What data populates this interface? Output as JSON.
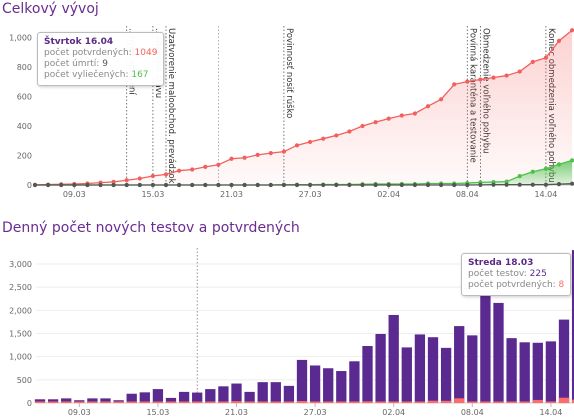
{
  "section1": {
    "title": "Celkový vývoj"
  },
  "section2": {
    "title": "Denný počet nových testov a potvrdených"
  },
  "chart_data": [
    {
      "type": "area",
      "title": "Celkový vývoj",
      "ylim": [
        0,
        1100
      ],
      "y_ticks": [
        "0",
        "200",
        "400",
        "600",
        "800",
        "1,000"
      ],
      "x_ticks": [
        "09.03",
        "15.03",
        "21.03",
        "27.03",
        "02.04",
        "08.04",
        "14.04"
      ],
      "x_start": "06.03",
      "x": [
        "06.03",
        "07.03",
        "08.03",
        "09.03",
        "10.03",
        "11.03",
        "12.03",
        "13.03",
        "14.03",
        "15.03",
        "16.03",
        "17.03",
        "18.03",
        "19.03",
        "20.03",
        "21.03",
        "22.03",
        "23.03",
        "24.03",
        "25.03",
        "26.03",
        "27.03",
        "28.03",
        "29.03",
        "30.03",
        "31.03",
        "01.04",
        "02.04",
        "03.04",
        "04.04",
        "05.04",
        "06.04",
        "07.04",
        "08.04",
        "09.04",
        "10.04",
        "11.04",
        "12.04",
        "13.04",
        "14.04",
        "15.04",
        "16.04"
      ],
      "series": [
        {
          "name": "počet potvrdených",
          "color": "#f25f5c",
          "values": [
            1,
            3,
            5,
            7,
            10,
            16,
            21,
            32,
            44,
            61,
            72,
            97,
            105,
            123,
            137,
            178,
            185,
            204,
            216,
            226,
            269,
            292,
            314,
            336,
            363,
            400,
            426,
            450,
            471,
            485,
            534,
            581,
            682,
            701,
            715,
            728,
            742,
            769,
            835,
            863,
            977,
            1049
          ]
        },
        {
          "name": "počet vyliečených",
          "color": "#4cc24c",
          "values": [
            0,
            0,
            0,
            0,
            0,
            0,
            0,
            0,
            0,
            0,
            0,
            0,
            0,
            0,
            0,
            0,
            0,
            0,
            0,
            2,
            2,
            2,
            3,
            3,
            3,
            5,
            7,
            7,
            7,
            7,
            10,
            10,
            10,
            13,
            18,
            20,
            23,
            60,
            90,
            110,
            140,
            167
          ]
        },
        {
          "name": "počet úmrtí",
          "color": "#555555",
          "values": [
            0,
            0,
            0,
            0,
            0,
            0,
            0,
            0,
            0,
            0,
            0,
            0,
            0,
            0,
            0,
            0,
            0,
            0,
            0,
            0,
            0,
            0,
            0,
            0,
            0,
            0,
            0,
            0,
            0,
            0,
            0,
            0,
            0,
            0,
            1,
            2,
            2,
            2,
            2,
            2,
            6,
            9
          ]
        }
      ],
      "annotations": [
        {
          "x": "13.03",
          "label": "...ných opatrení"
        },
        {
          "x": "15.03",
          "label": "...ždového stavu"
        },
        {
          "x": "16.03",
          "label": "Uzatvorenie maloobchod. prevádzok"
        },
        {
          "x": "20.03",
          "label": ""
        },
        {
          "x": "25.03",
          "label": "Povinnosť nosiť rúško"
        },
        {
          "x": "08.04",
          "label": "Povinná karanténa a testovanie"
        },
        {
          "x": "09.04",
          "label": "Obmedzenie voľného pohybu"
        },
        {
          "x": "14.04",
          "label": "Koniec obmedzenia voľného pohybu"
        }
      ],
      "tooltip": {
        "date": "Štvrtok 16.04",
        "confirmed_label": "počet potvrdených: ",
        "confirmed": "1049",
        "deaths_label": "počet úmrtí: ",
        "deaths": "9",
        "recovered_label": "počet vyliečených: ",
        "recovered": "167"
      }
    },
    {
      "type": "bar",
      "title": "Denný počet nových testov a potvrdených",
      "ylim": [
        0,
        3300
      ],
      "y_ticks": [
        "0",
        "500",
        "1,000",
        "1,500",
        "2,000",
        "2,500",
        "3,000"
      ],
      "x_ticks": [
        "09.03",
        "15.03",
        "21.03",
        "27.03",
        "02.04",
        "08.04",
        "14.04"
      ],
      "x_start": "06.03",
      "annotation_x": "18.03",
      "series": [
        {
          "name": "počet testov",
          "color": "#5b2a91",
          "values": [
            80,
            80,
            100,
            60,
            100,
            100,
            60,
            200,
            230,
            300,
            110,
            240,
            225,
            300,
            360,
            420,
            240,
            450,
            450,
            370,
            930,
            810,
            750,
            690,
            900,
            1230,
            1490,
            1900,
            1200,
            1480,
            1420,
            1190,
            1660,
            1460,
            2330,
            2160,
            1400,
            1310,
            1300,
            1330,
            1800,
            3300
          ]
        },
        {
          "name": "počet potvrdených",
          "color": "#ff6b6b",
          "values": [
            1,
            2,
            2,
            2,
            3,
            6,
            5,
            11,
            12,
            17,
            11,
            25,
            8,
            18,
            14,
            41,
            7,
            19,
            12,
            10,
            43,
            23,
            22,
            22,
            27,
            37,
            26,
            24,
            21,
            14,
            49,
            47,
            101,
            19,
            14,
            13,
            14,
            27,
            66,
            28,
            114,
            72
          ]
        }
      ],
      "tooltip": {
        "date": "Streda 18.03",
        "tests_label": "počet testov: ",
        "tests": "225",
        "confirmed_label": "počet potvrdených: ",
        "confirmed": "8"
      }
    }
  ]
}
